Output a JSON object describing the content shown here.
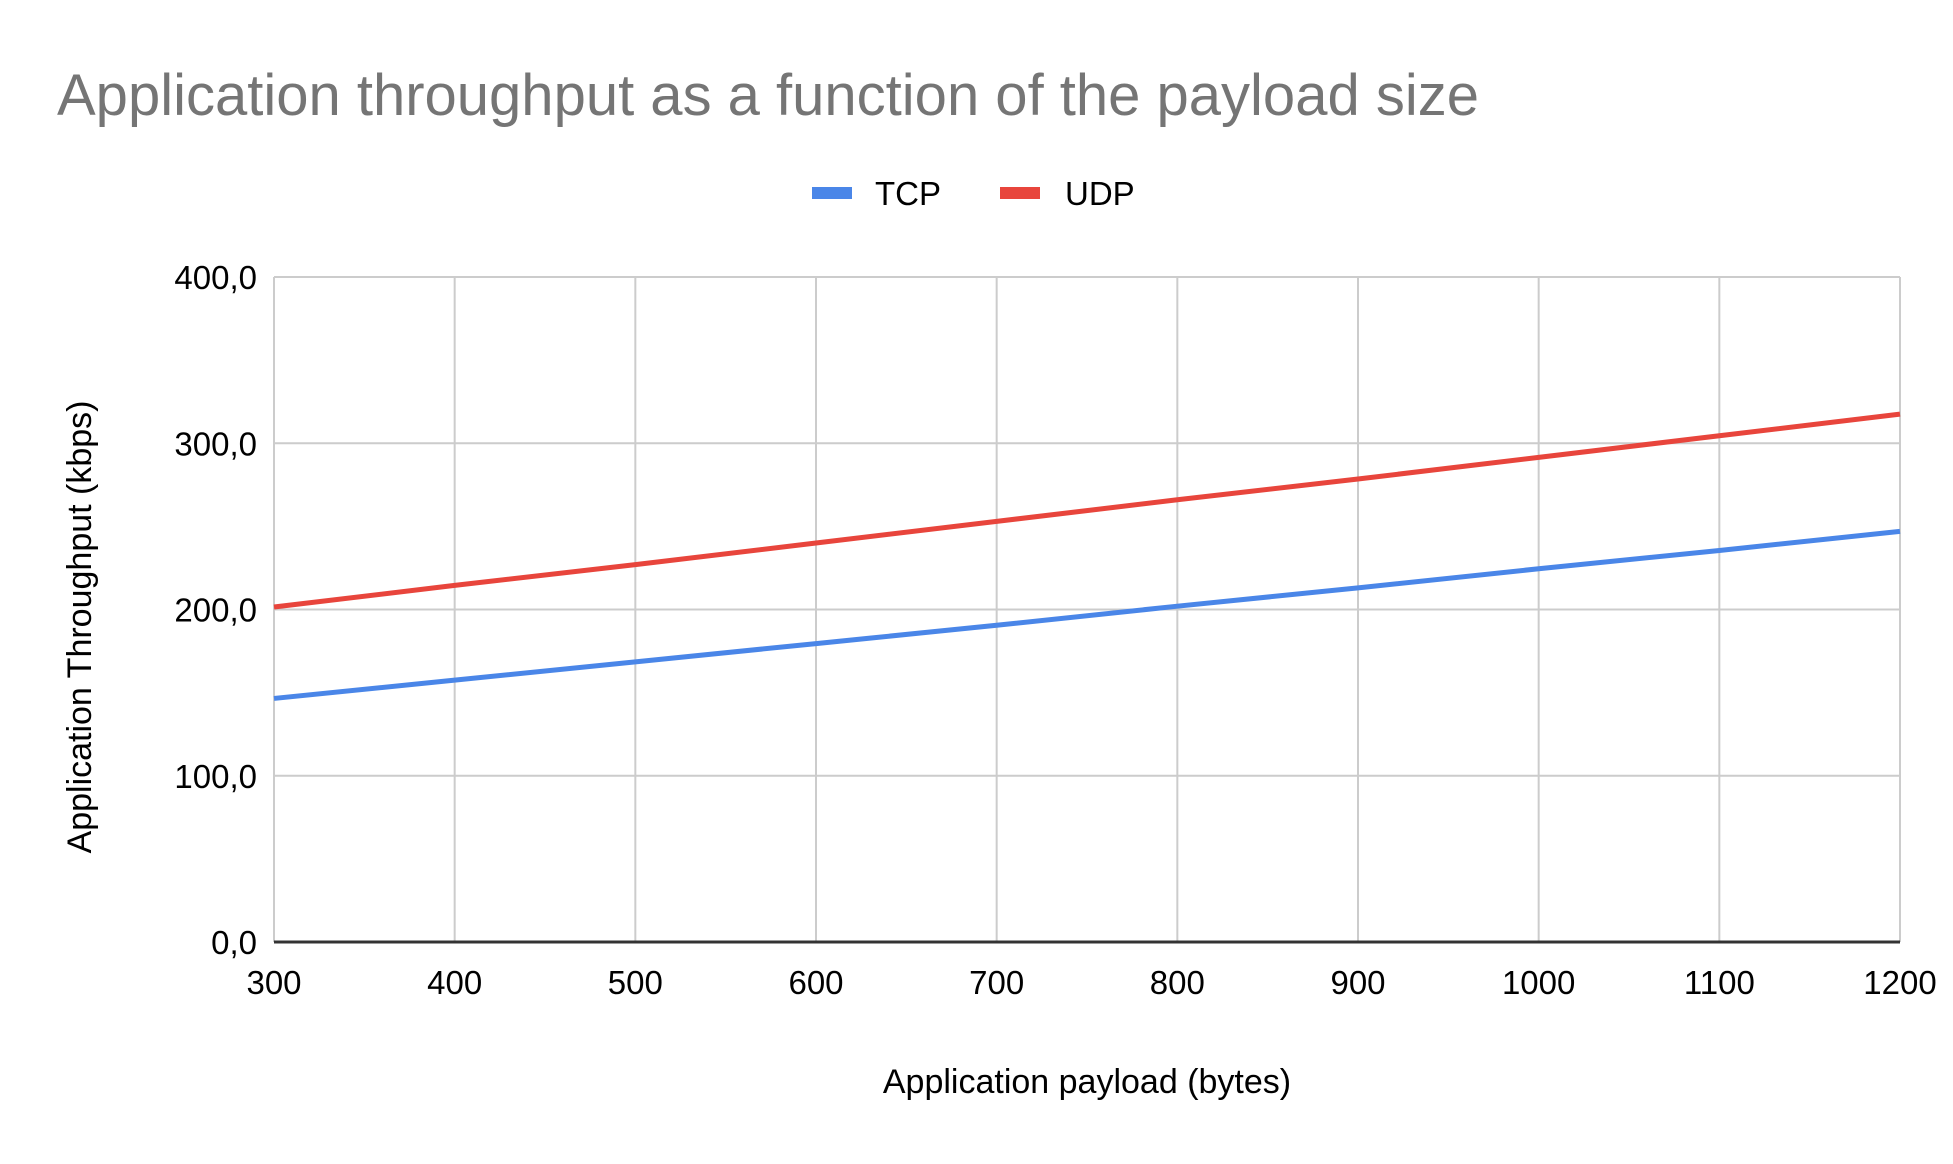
{
  "chart_data": {
    "type": "line",
    "title": "Application throughput as a function of the payload size",
    "xlabel": "Application payload (bytes)",
    "ylabel": "Application Throughput (kbps)",
    "x": [
      300,
      400,
      500,
      600,
      700,
      800,
      900,
      1000,
      1100,
      1200
    ],
    "x_tick_labels": [
      "300",
      "400",
      "500",
      "600",
      "700",
      "800",
      "900",
      "1000",
      "1100",
      "1200"
    ],
    "y_tick_labels": [
      "0,0",
      "100,0",
      "200,0",
      "300,0",
      "400,0"
    ],
    "xlim": [
      300,
      1200
    ],
    "ylim": [
      0,
      400
    ],
    "grid": true,
    "legend_position": "top",
    "series": [
      {
        "name": "TCP",
        "color": "#4a86e8",
        "values": [
          146.5,
          157.5,
          168.5,
          179.5,
          190.5,
          202.0,
          213.0,
          224.5,
          235.5,
          247.0
        ]
      },
      {
        "name": "UDP",
        "color": "#e8453c",
        "values": [
          201.5,
          214.5,
          227.0,
          240.0,
          253.0,
          266.0,
          278.5,
          291.5,
          304.5,
          317.5
        ]
      }
    ],
    "colors": {
      "title": "#757575",
      "text": "#000000",
      "grid": "#cccccc",
      "axis": "#333333"
    }
  }
}
